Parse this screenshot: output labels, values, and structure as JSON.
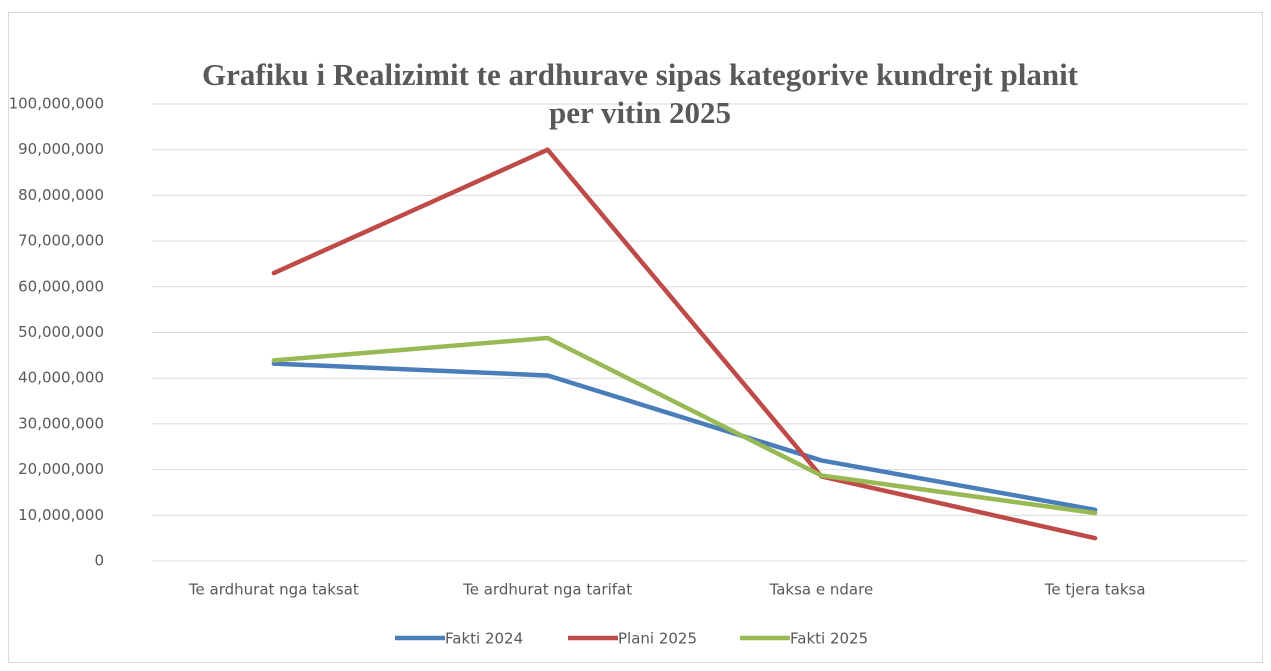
{
  "chart_data": {
    "type": "line",
    "title": [
      "Grafiku i Realizimit te  ardhurave sipas kategorive kundrejt planit",
      "per vitin 2025"
    ],
    "categories": [
      "Te ardhurat nga taksat",
      "Te ardhurat nga tarifat",
      "Taksa e ndare",
      "Te tjera taksa"
    ],
    "series": [
      {
        "name": "Fakti 2024",
        "color": "#4a7ebb",
        "values": [
          43200000,
          40600000,
          22000000,
          11200000
        ]
      },
      {
        "name": "Plani 2025",
        "color": "#be4b48",
        "values": [
          63000000,
          90000000,
          18500000,
          5000000
        ]
      },
      {
        "name": "Fakti 2025",
        "color": "#98b954",
        "values": [
          43900000,
          48800000,
          18700000,
          10500000
        ]
      }
    ],
    "ylim": [
      0,
      100000000
    ],
    "yticks": [
      0,
      {
        "value": 10000000,
        "label": "10,000,000"
      },
      {
        "value": 20000000,
        "label": "20,000,000"
      },
      {
        "value": 30000000,
        "label": "30,000,000"
      },
      {
        "value": 40000000,
        "label": "40,000,000"
      },
      {
        "value": 50000000,
        "label": "50,000,000"
      },
      {
        "value": 60000000,
        "label": "60,000,000"
      },
      {
        "value": 70000000,
        "label": "70,000,000"
      },
      {
        "value": 80000000,
        "label": "80,000,000"
      },
      {
        "value": 90000000,
        "label": "90,000,000"
      },
      {
        "value": 100000000,
        "label": "100,000,000"
      }
    ],
    "grid": true,
    "legend": "bottom"
  }
}
